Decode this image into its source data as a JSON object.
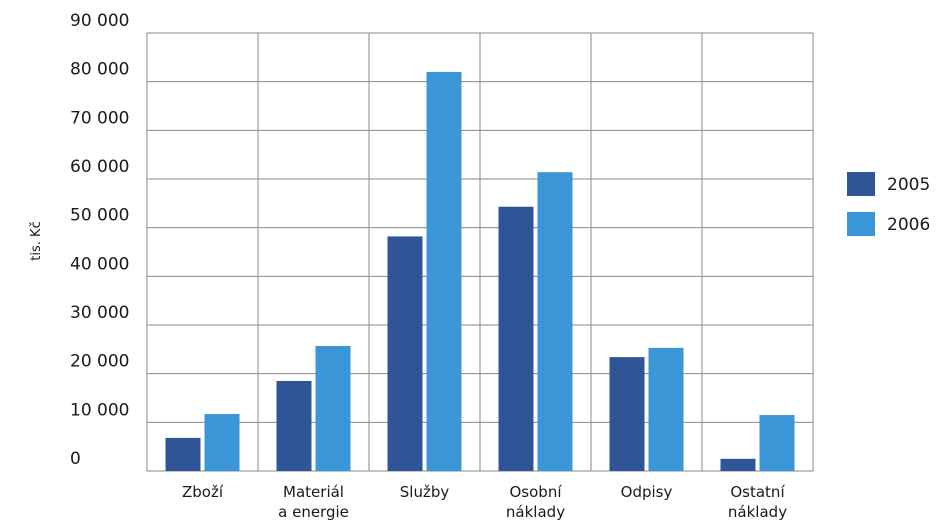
{
  "chart_data": {
    "type": "bar",
    "ylabel": "tis. Kč",
    "ylim": [
      0,
      90000
    ],
    "yticks": [
      0,
      10000,
      20000,
      30000,
      40000,
      50000,
      60000,
      70000,
      80000,
      90000
    ],
    "ytick_labels": [
      "0",
      "10 000",
      "20 000",
      "30 000",
      "40 000",
      "50 000",
      "60 000",
      "70 000",
      "80 000",
      "90 000"
    ],
    "categories": [
      [
        "Zboží"
      ],
      [
        "Materiál",
        "a energie"
      ],
      [
        "Služby"
      ],
      [
        "Osobní",
        "náklady"
      ],
      [
        "Odpisy"
      ],
      [
        "Ostatní",
        "náklady"
      ]
    ],
    "series": [
      {
        "name": "2005",
        "color": "#2f5597",
        "values": [
          6800,
          18500,
          48200,
          54300,
          23400,
          2500
        ]
      },
      {
        "name": "2006",
        "color": "#3b96d8",
        "values": [
          11700,
          25700,
          82000,
          61400,
          25300,
          11500
        ]
      }
    ],
    "grid": true,
    "legend_position": "right"
  }
}
